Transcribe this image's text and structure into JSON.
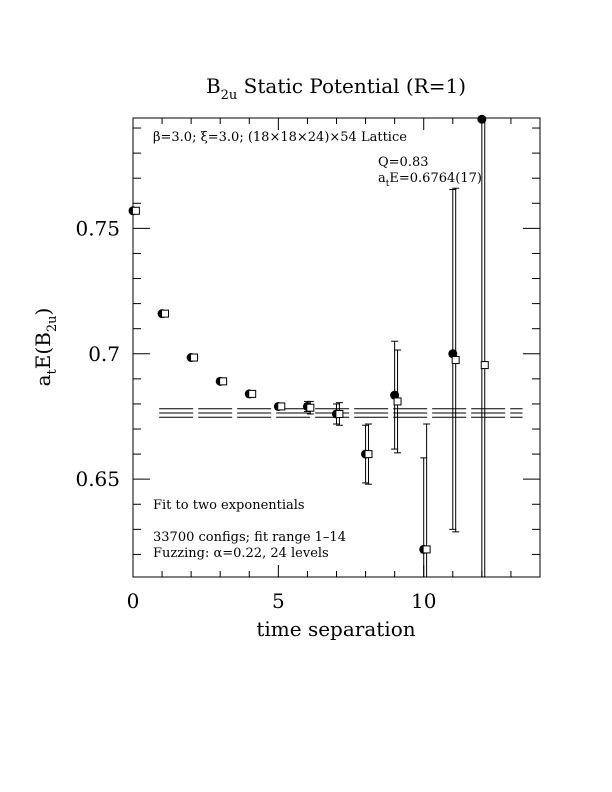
{
  "chart_data": {
    "type": "scatter",
    "title": {
      "main": "B",
      "sub": "2u",
      "rest": " Static Potential (R=1)"
    },
    "xlabel": "time separation",
    "ylabel": {
      "pre": "a",
      "sub1": "t",
      "mid": "E(B",
      "sub2": "2u",
      "post": ")"
    },
    "xlim": [
      0,
      14
    ],
    "ylim": [
      0.611,
      0.794
    ],
    "xticks": [
      0,
      5,
      10
    ],
    "yticks": [
      0.65,
      0.7,
      0.75
    ],
    "xtick_labels": [
      "0",
      "5",
      "10"
    ],
    "ytick_labels": [
      "0.65",
      "0.7",
      "0.75"
    ],
    "annotations": {
      "lattice": "β=3.0; ξ=3.0; (18×18×24)×54 Lattice",
      "q": "Q=0.83",
      "energy": {
        "pre": "a",
        "sub": "t",
        "rest": "E=0.6764(17)"
      },
      "fit": "Fit to two exponentials",
      "configs": "33700 configs; fit range 1–14",
      "fuzzing": "Fuzzing: α=0.22, 24 levels"
    },
    "series": [
      {
        "marker": "filled-circle",
        "x": [
          0,
          1,
          2,
          3,
          4,
          5,
          6,
          7,
          8,
          9,
          10,
          11,
          12
        ],
        "y": [
          0.757,
          0.716,
          0.6985,
          0.689,
          0.684,
          0.679,
          0.679,
          0.676,
          0.66,
          0.6835,
          0.622,
          0.7,
          0.7935
        ],
        "err_lo": [
          0.0005,
          0.0005,
          0.0005,
          0.0005,
          0.0005,
          0.001,
          0.002,
          0.004,
          0.0115,
          0.0215,
          0.05,
          0.07,
          0.2
        ],
        "err_hi": [
          0.0005,
          0.0005,
          0.0005,
          0.0005,
          0.0005,
          0.001,
          0.002,
          0.004,
          0.0115,
          0.0215,
          0.0365,
          0.0655,
          0.2
        ]
      },
      {
        "marker": "open-square",
        "x": [
          0.1,
          1.1,
          2.1,
          3.1,
          4.1,
          5.1,
          6.1,
          7.1,
          8.1,
          9.1,
          10.1,
          11.1,
          12.1
        ],
        "y": [
          0.757,
          0.716,
          0.6985,
          0.689,
          0.684,
          0.679,
          0.6785,
          0.676,
          0.66,
          0.681,
          0.622,
          0.6975,
          0.6955
        ],
        "err_lo": [
          0.0005,
          0.0005,
          0.0005,
          0.0005,
          0.0005,
          0.0012,
          0.0025,
          0.0045,
          0.012,
          0.0205,
          0.05,
          0.0685,
          0.2
        ],
        "err_hi": [
          0.0005,
          0.0005,
          0.0005,
          0.0005,
          0.0005,
          0.0012,
          0.0025,
          0.0045,
          0.012,
          0.0205,
          0.05,
          0.0685,
          0.2
        ]
      }
    ],
    "fit": {
      "x_range": [
        0.9,
        13.4
      ],
      "central": 0.6764,
      "upper": 0.6781,
      "lower": 0.6747,
      "style": "long-dash"
    }
  }
}
